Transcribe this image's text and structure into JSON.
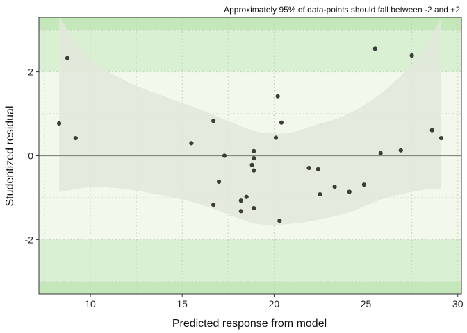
{
  "chart_data": {
    "type": "scatter",
    "title": "",
    "subtitle": "Approximately 95% of data-points should fall between -2 and +2",
    "xlabel": "Predicted response from model",
    "ylabel": "Studentized residual",
    "xlim": [
      7.2,
      30.2
    ],
    "ylim": [
      -3.3,
      3.3
    ],
    "x_ticks": [
      10,
      15,
      20,
      25,
      30
    ],
    "y_ticks": [
      -2,
      0,
      2
    ],
    "x_tick_labels": [
      "10",
      "15",
      "20",
      "25",
      "30"
    ],
    "y_tick_labels": [
      "-2",
      "0",
      "2"
    ],
    "grid": true,
    "reference_line_y": 0,
    "zones": {
      "outer_band": [
        3,
        3.3
      ],
      "middle_band": [
        2,
        3
      ],
      "inner_band": [
        -2,
        2
      ]
    },
    "colors": {
      "outer_band": "#c5e8ba",
      "middle_band": "#daf0d3",
      "inner_band": "#f2f9ec",
      "confidence_ribbon": "#e2e8da",
      "points": "#3a3d38",
      "reference_line": "#7f8a7a"
    },
    "confidence_ribbon": {
      "x": [
        8.3,
        10,
        12,
        14,
        16,
        18,
        19,
        20,
        21,
        22,
        24,
        26,
        28,
        29.1
      ],
      "upper": [
        3.3,
        2.32,
        1.77,
        1.42,
        1.1,
        0.74,
        0.58,
        0.53,
        0.56,
        0.7,
        0.99,
        1.55,
        2.45,
        3.3
      ],
      "lower": [
        -0.87,
        -0.75,
        -0.8,
        -0.95,
        -1.16,
        -1.48,
        -1.62,
        -1.65,
        -1.62,
        -1.56,
        -1.36,
        -1.02,
        -0.82,
        -0.8
      ]
    },
    "points": [
      {
        "x": 8.3,
        "y": 0.77
      },
      {
        "x": 8.75,
        "y": 2.33
      },
      {
        "x": 9.2,
        "y": 0.42
      },
      {
        "x": 15.5,
        "y": 0.3
      },
      {
        "x": 16.7,
        "y": 0.83
      },
      {
        "x": 16.7,
        "y": -1.17
      },
      {
        "x": 17.0,
        "y": -0.62
      },
      {
        "x": 17.3,
        "y": 0.0
      },
      {
        "x": 18.2,
        "y": -1.07
      },
      {
        "x": 18.2,
        "y": -1.32
      },
      {
        "x": 18.5,
        "y": -0.98
      },
      {
        "x": 18.8,
        "y": -0.22
      },
      {
        "x": 18.9,
        "y": 0.11
      },
      {
        "x": 18.9,
        "y": -0.06
      },
      {
        "x": 18.9,
        "y": -0.35
      },
      {
        "x": 18.9,
        "y": -1.25
      },
      {
        "x": 20.1,
        "y": 0.43
      },
      {
        "x": 20.2,
        "y": 1.42
      },
      {
        "x": 20.3,
        "y": -1.55
      },
      {
        "x": 20.4,
        "y": 0.79
      },
      {
        "x": 21.9,
        "y": -0.29
      },
      {
        "x": 22.4,
        "y": -0.32
      },
      {
        "x": 22.5,
        "y": -0.92
      },
      {
        "x": 23.3,
        "y": -0.74
      },
      {
        "x": 24.1,
        "y": -0.86
      },
      {
        "x": 24.9,
        "y": -0.69
      },
      {
        "x": 25.5,
        "y": 2.55
      },
      {
        "x": 25.8,
        "y": 0.06
      },
      {
        "x": 26.9,
        "y": 0.13
      },
      {
        "x": 27.5,
        "y": 2.39
      },
      {
        "x": 28.6,
        "y": 0.61
      },
      {
        "x": 29.1,
        "y": 0.42
      }
    ]
  }
}
